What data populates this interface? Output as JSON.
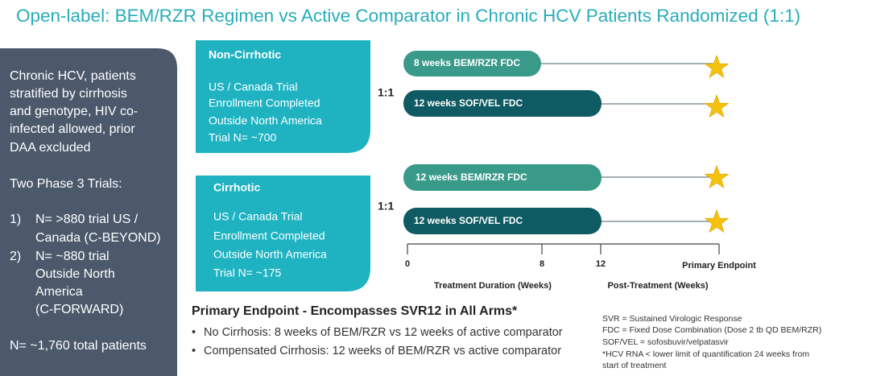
{
  "title": "Open-label:  BEM/RZR Regimen vs Active Comparator in Chronic HCV Patients Randomized (1:1)",
  "sidebar": {
    "intro": [
      "Chronic HCV, patients",
      "stratified by cirrhosis",
      "and genotype, HIV co-",
      "infected allowed, prior",
      "DAA excluded"
    ],
    "trials_heading": "Two Phase 3 Trials:",
    "trials": [
      {
        "number": "1)",
        "lines": [
          "N= >880 trial US /",
          "Canada (C-BEYOND)"
        ]
      },
      {
        "number": "2)",
        "lines": [
          "N= ~880 trial",
          "Outside North",
          "America",
          "(C-FORWARD)"
        ]
      }
    ],
    "total": "N= ~1,760 total patients"
  },
  "groups": [
    {
      "label": "Non-Cirrhotic",
      "details": [
        "US  / Canada Trial",
        "Enrollment  Completed",
        "Outside North America",
        "Trial N= ~700"
      ],
      "ratio": "1:1",
      "arms": [
        "8 weeks BEM/RZR FDC",
        "12 weeks SOF/VEL FDC"
      ]
    },
    {
      "label": "Cirrhotic",
      "details": [
        "US / Canada Trial",
        "Enrollment Completed",
        "Outside North America",
        "Trial N= ~175"
      ],
      "ratio": "1:1",
      "arms": [
        "12 weeks BEM/RZR FDC",
        "12 weeks SOF/VEL FDC"
      ]
    }
  ],
  "timeline": {
    "ticks": [
      "0",
      "8",
      "12",
      "Primary Endpoint"
    ],
    "treatment_label": "Treatment Duration (Weeks)",
    "post_label": "Post-Treatment (Weeks)"
  },
  "endpoint": {
    "heading": "Primary Endpoint  - Encompasses SVR12 in All Arms*",
    "bullets": [
      "No Cirrhosis: 8 weeks of BEM/RZR vs 12 weeks of active comparator",
      "Compensated Cirrhosis: 12 weeks of BEM/RZR vs active comparator"
    ]
  },
  "footnotes": [
    "SVR = Sustained Virologic Response",
    "FDC = Fixed Dose Combination (Dose 2 tb QD BEM/RZR)",
    "SOF/VEL = sofosbuvir/velpatasvir",
    "*HCV RNA < lower limit of quantification 24 weeks from",
    "start of treatment"
  ]
}
